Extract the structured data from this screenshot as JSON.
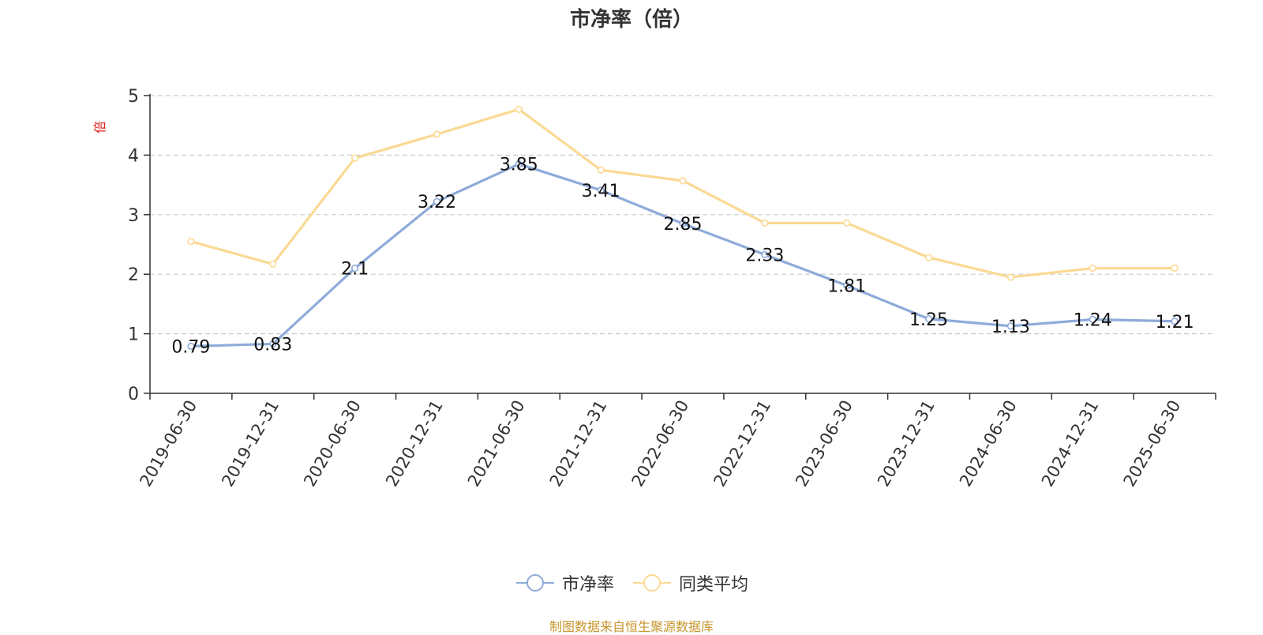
{
  "chart_data": {
    "type": "line",
    "title": "市净率（倍）",
    "ylabel": "倍",
    "xlabel": "",
    "categories": [
      "2019-06-30",
      "2019-12-31",
      "2020-06-30",
      "2020-12-31",
      "2021-06-30",
      "2021-12-31",
      "2022-06-30",
      "2022-12-31",
      "2023-06-30",
      "2023-12-31",
      "2024-06-30",
      "2024-12-31",
      "2025-06-30"
    ],
    "series": [
      {
        "name": "市净率",
        "color": "#8eabd9",
        "values": [
          0.79,
          0.83,
          2.1,
          3.22,
          3.85,
          3.41,
          2.85,
          2.33,
          1.81,
          1.25,
          1.13,
          1.24,
          1.21
        ],
        "labels": [
          "0.79",
          "0.83",
          "2.1",
          "3.22",
          "3.85",
          "3.41",
          "2.85",
          "2.33",
          "1.81",
          "1.25",
          "1.13",
          "1.24",
          "1.21"
        ]
      },
      {
        "name": "同类平均",
        "color": "#fbd994",
        "values": [
          2.55,
          2.17,
          3.95,
          4.35,
          4.77,
          3.75,
          3.57,
          2.86,
          2.86,
          2.28,
          1.95,
          2.1,
          2.1
        ]
      }
    ],
    "ylim": [
      0,
      5
    ],
    "yticks": [
      "0",
      "1",
      "2",
      "3",
      "4",
      "5"
    ],
    "grid": true,
    "legend_position": "bottom-center",
    "ylabel_color": "#e02020",
    "source_note": "制图数据来自恒生聚源数据库"
  }
}
